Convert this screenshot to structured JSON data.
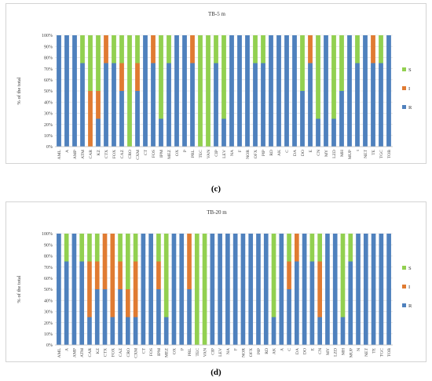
{
  "panels": [
    {
      "id": "c",
      "caption": "(c)"
    },
    {
      "id": "d",
      "caption": "(d)"
    }
  ],
  "colors": {
    "S": "#92d050",
    "I": "#e07b32",
    "R": "#4f81bd"
  },
  "chart_data": [
    {
      "type": "bar",
      "stacked": true,
      "title": "TB-5 m",
      "ylabel": "% of the total",
      "ylim": [
        0,
        100
      ],
      "yticks": [
        "0%",
        "10%",
        "20%",
        "30%",
        "40%",
        "50%",
        "60%",
        "70%",
        "80%",
        "90%",
        "100%"
      ],
      "legend_position": "right",
      "categories": [
        "AML",
        "A",
        "AMP",
        "ATM",
        "CAR",
        "KZ",
        "CTX",
        "FOX",
        "CAZ",
        "CRO",
        "CXM",
        "CT",
        "FOS",
        "IPM",
        "MEZ",
        "OX",
        "P",
        "PRL",
        "TEC",
        "VAN",
        "CIP",
        "LEV",
        "NA",
        "F",
        "NOR",
        "OFX",
        "PIP",
        "RD",
        "AK",
        "C",
        "DA",
        "DO",
        "E",
        "CN",
        "MY",
        "LZD",
        "MH",
        "MUP",
        "t",
        "NET",
        "TE",
        "TGC",
        "TOB"
      ],
      "series": [
        {
          "name": "R",
          "values": [
            100,
            100,
            100,
            75,
            0,
            25,
            75,
            75,
            50,
            0,
            50,
            100,
            75,
            25,
            75,
            100,
            100,
            75,
            0,
            0,
            75,
            25,
            100,
            100,
            100,
            75,
            75,
            100,
            100,
            100,
            100,
            50,
            75,
            25,
            100,
            25,
            50,
            100,
            75,
            100,
            75,
            75,
            100
          ]
        },
        {
          "name": "I",
          "values": [
            0,
            0,
            0,
            0,
            50,
            25,
            25,
            0,
            25,
            0,
            25,
            0,
            25,
            0,
            0,
            0,
            0,
            25,
            0,
            0,
            0,
            0,
            0,
            0,
            0,
            0,
            0,
            0,
            0,
            0,
            0,
            0,
            25,
            0,
            0,
            0,
            0,
            0,
            0,
            0,
            25,
            0,
            0
          ]
        },
        {
          "name": "S",
          "values": [
            0,
            0,
            0,
            25,
            50,
            50,
            0,
            25,
            25,
            100,
            25,
            0,
            0,
            75,
            25,
            0,
            0,
            0,
            100,
            100,
            25,
            75,
            0,
            0,
            0,
            25,
            25,
            0,
            0,
            0,
            0,
            50,
            0,
            75,
            0,
            75,
            50,
            0,
            25,
            0,
            0,
            25,
            0
          ]
        }
      ]
    },
    {
      "type": "bar",
      "stacked": true,
      "title": "TB-20 m",
      "ylabel": "% of the total",
      "ylim": [
        0,
        100
      ],
      "yticks": [
        "0%",
        "10%",
        "20%",
        "30%",
        "40%",
        "50%",
        "60%",
        "70%",
        "80%",
        "90%",
        "100%"
      ],
      "legend_position": "right",
      "categories": [
        "AML",
        "A",
        "AMP",
        "ATM",
        "CAR",
        "KZ",
        "CTX",
        "FOX",
        "CAZ",
        "CRO",
        "CXM",
        "CT",
        "FOS",
        "IPM",
        "MEZ",
        "OX",
        "P",
        "PRL",
        "TEC",
        "VAN",
        "CIP",
        "LEV",
        "NA",
        "F",
        "NOR",
        "OFX",
        "PIP",
        "RD",
        "AK",
        "A",
        "C",
        "DA",
        "DO",
        "E",
        "CN",
        "MY",
        "LZD",
        "MH",
        "MUP",
        "N",
        "NET",
        "TE",
        "TGC",
        "TOB"
      ],
      "series": [
        {
          "name": "R",
          "values": [
            100,
            75,
            100,
            75,
            25,
            50,
            50,
            25,
            50,
            25,
            25,
            100,
            100,
            50,
            25,
            100,
            100,
            50,
            0,
            0,
            100,
            100,
            100,
            100,
            100,
            100,
            100,
            100,
            25,
            100,
            50,
            75,
            100,
            75,
            25,
            100,
            100,
            25,
            75,
            100,
            100,
            100,
            100,
            100
          ]
        },
        {
          "name": "I",
          "values": [
            0,
            0,
            0,
            0,
            50,
            25,
            50,
            75,
            25,
            25,
            50,
            0,
            0,
            25,
            0,
            0,
            0,
            50,
            0,
            0,
            0,
            0,
            0,
            0,
            0,
            0,
            0,
            0,
            0,
            0,
            25,
            25,
            0,
            0,
            50,
            0,
            0,
            0,
            0,
            0,
            0,
            0,
            0,
            0
          ]
        },
        {
          "name": "S",
          "values": [
            0,
            25,
            0,
            25,
            25,
            25,
            0,
            0,
            25,
            50,
            25,
            0,
            0,
            25,
            75,
            0,
            0,
            0,
            100,
            100,
            0,
            0,
            0,
            0,
            0,
            0,
            0,
            0,
            75,
            0,
            25,
            0,
            0,
            25,
            25,
            0,
            0,
            75,
            25,
            0,
            0,
            0,
            0,
            0
          ]
        }
      ]
    }
  ]
}
